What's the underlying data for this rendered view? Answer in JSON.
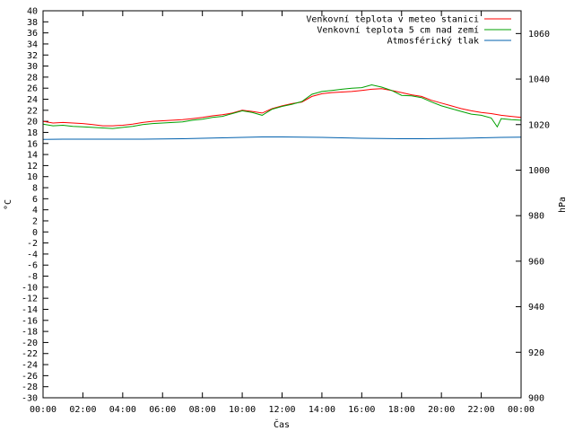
{
  "chart_data": {
    "type": "line",
    "title": "",
    "xlabel": "Čas",
    "ylabel": "°C",
    "ylabel_right": "hPa",
    "x_ticks": [
      "00:00",
      "02:00",
      "04:00",
      "06:00",
      "08:00",
      "10:00",
      "12:00",
      "14:00",
      "16:00",
      "18:00",
      "20:00",
      "22:00",
      "00:00"
    ],
    "xlim_hours": [
      0,
      24
    ],
    "ylim": [
      -30,
      40
    ],
    "ylim_right": [
      900,
      1070
    ],
    "y_ticks": [
      40,
      38,
      36,
      34,
      32,
      30,
      28,
      26,
      24,
      22,
      20,
      18,
      16,
      14,
      12,
      10,
      8,
      6,
      4,
      2,
      0,
      -2,
      -4,
      -6,
      -8,
      -10,
      -12,
      -14,
      -16,
      -18,
      -20,
      -22,
      -24,
      -26,
      -28,
      -30
    ],
    "y_ticks_right": [
      1060,
      1040,
      1020,
      1000,
      980,
      960,
      940,
      920,
      900
    ],
    "grid": false,
    "legend_position": "top-right",
    "series": [
      {
        "name": "Venkovní teplota v meteo stanici",
        "color": "#ff0000",
        "axis": "left",
        "x": [
          0,
          0.5,
          1,
          1.5,
          2,
          2.5,
          3,
          3.5,
          4,
          4.5,
          5,
          5.5,
          6,
          6.5,
          7,
          7.5,
          8,
          8.5,
          9,
          9.5,
          10,
          10.5,
          11,
          11.5,
          12,
          12.5,
          13,
          13.5,
          14,
          14.5,
          15,
          15.5,
          16,
          16.5,
          17,
          17.5,
          18,
          18.5,
          19,
          19.5,
          20,
          20.5,
          21,
          21.5,
          22,
          22.5,
          23,
          23.5,
          24
        ],
        "y": [
          20,
          19.7,
          19.8,
          19.7,
          19.6,
          19.4,
          19.2,
          19.2,
          19.3,
          19.5,
          19.8,
          20,
          20.1,
          20.2,
          20.3,
          20.5,
          20.7,
          21,
          21.2,
          21.5,
          22,
          21.8,
          21.5,
          22.3,
          22.8,
          23.2,
          23.5,
          24.5,
          25,
          25.2,
          25.3,
          25.4,
          25.6,
          25.8,
          25.9,
          25.6,
          25.2,
          24.8,
          24.5,
          23.8,
          23.3,
          22.8,
          22.3,
          21.9,
          21.6,
          21.4,
          21.1,
          20.9,
          20.7
        ]
      },
      {
        "name": "Venkovní teplota 5 cm nad zemí",
        "color": "#00a000",
        "axis": "left",
        "x": [
          0,
          0.5,
          1,
          1.5,
          2,
          2.5,
          3,
          3.5,
          4,
          4.5,
          5,
          5.5,
          6,
          6.5,
          7,
          7.5,
          8,
          8.5,
          9,
          9.5,
          10,
          10.5,
          11,
          11.5,
          12,
          12.5,
          13,
          13.5,
          14,
          14.5,
          15,
          15.5,
          16,
          16.5,
          17,
          17.5,
          18,
          18.5,
          19,
          19.5,
          20,
          20.5,
          21,
          21.5,
          22,
          22.5,
          22.8,
          23,
          23.5,
          24
        ],
        "y": [
          19.5,
          19.2,
          19.3,
          19.1,
          19,
          18.9,
          18.8,
          18.7,
          18.9,
          19.1,
          19.4,
          19.6,
          19.7,
          19.8,
          19.9,
          20.2,
          20.4,
          20.7,
          20.9,
          21.4,
          21.9,
          21.6,
          21.1,
          22.2,
          22.7,
          23.1,
          23.6,
          24.9,
          25.4,
          25.6,
          25.8,
          26,
          26.1,
          26.6,
          26.2,
          25.6,
          24.7,
          24.6,
          24.3,
          23.5,
          22.8,
          22.3,
          21.8,
          21.3,
          21.1,
          20.6,
          19,
          20.5,
          20.3,
          20.2
        ]
      },
      {
        "name": "Atmosférický tlak",
        "color": "#0060ad",
        "axis": "right",
        "x": [
          0,
          1,
          2,
          3,
          4,
          5,
          6,
          7,
          8,
          9,
          10,
          11,
          12,
          13,
          14,
          15,
          16,
          17,
          18,
          19,
          20,
          21,
          22,
          23,
          24
        ],
        "y": [
          1013.5,
          1013.6,
          1013.6,
          1013.6,
          1013.6,
          1013.6,
          1013.7,
          1013.8,
          1014,
          1014.2,
          1014.4,
          1014.6,
          1014.6,
          1014.5,
          1014.4,
          1014.2,
          1014,
          1013.9,
          1013.8,
          1013.8,
          1013.9,
          1014,
          1014.2,
          1014.4,
          1014.5
        ]
      }
    ]
  }
}
